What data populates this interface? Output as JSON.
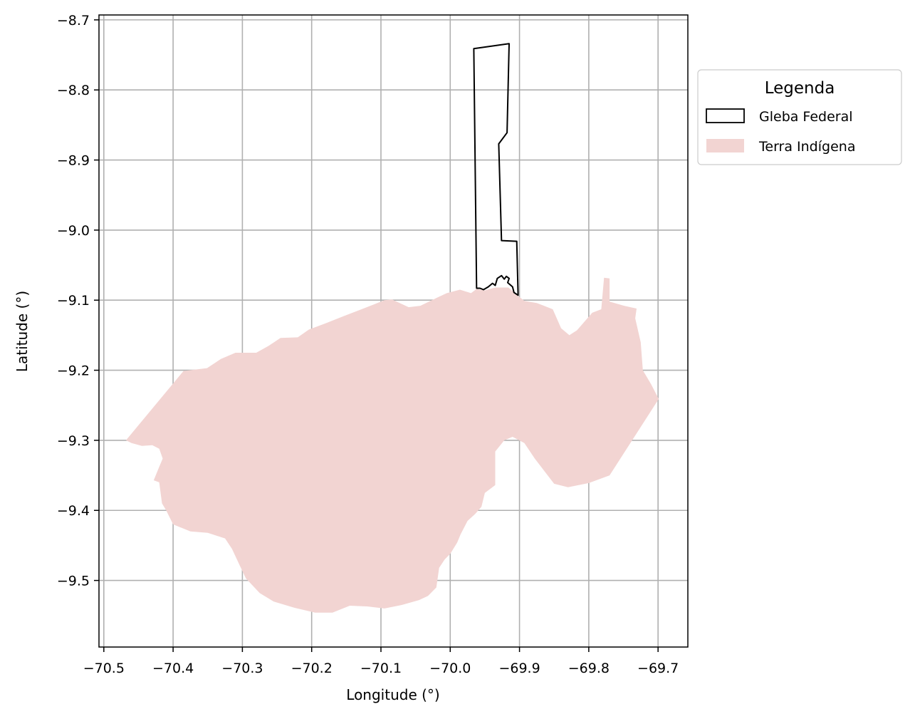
{
  "chart_data": {
    "type": "map",
    "xlabel": "Longitude (°)",
    "ylabel": "Latitude (°)",
    "xlim": [
      -70.507,
      -69.657
    ],
    "ylim": [
      -9.595,
      -8.693
    ],
    "grid": true,
    "xticks": [
      -70.5,
      -70.4,
      -70.3,
      -70.2,
      -70.1,
      -70.0,
      -69.9,
      -69.8,
      -69.7
    ],
    "xtick_labels": [
      "−70.5",
      "−70.4",
      "−70.3",
      "−70.2",
      "−70.1",
      "−70.0",
      "−69.9",
      "−69.8",
      "−69.7"
    ],
    "yticks": [
      -8.7,
      -8.8,
      -8.9,
      -9.0,
      -9.1,
      -9.2,
      -9.3,
      -9.4,
      -9.5
    ],
    "ytick_labels": [
      "−8.7",
      "−8.8",
      "−8.9",
      "−9.0",
      "−9.1",
      "−9.2",
      "−9.3",
      "−9.4",
      "−9.5"
    ],
    "legend": {
      "title": "Legenda",
      "position": "outside-right-top",
      "entries": [
        {
          "label": "Gleba Federal",
          "style": "outline",
          "color": "#000000"
        },
        {
          "label": "Terra Indígena",
          "style": "fill",
          "color": "#f2d4d2"
        }
      ]
    },
    "layers": [
      {
        "name": "Gleba Federal",
        "style": "outline",
        "stroke": "#000000",
        "polygon": [
          [
            -69.966,
            -8.741
          ],
          [
            -69.915,
            -8.734
          ],
          [
            -69.918,
            -8.861
          ],
          [
            -69.93,
            -8.877
          ],
          [
            -69.926,
            -9.015
          ],
          [
            -69.904,
            -9.016
          ],
          [
            -69.902,
            -9.093
          ],
          [
            -69.908,
            -9.089
          ],
          [
            -69.91,
            -9.081
          ],
          [
            -69.917,
            -9.075
          ],
          [
            -69.915,
            -9.069
          ],
          [
            -69.919,
            -9.066
          ],
          [
            -69.922,
            -9.07
          ],
          [
            -69.926,
            -9.065
          ],
          [
            -69.932,
            -9.069
          ],
          [
            -69.935,
            -9.079
          ],
          [
            -69.939,
            -9.076
          ],
          [
            -69.945,
            -9.081
          ],
          [
            -69.952,
            -9.085
          ],
          [
            -69.957,
            -9.083
          ],
          [
            -69.962,
            -9.083
          ]
        ]
      },
      {
        "name": "Terra Indígena",
        "style": "fill",
        "fill": "#f2d4d2",
        "polygon": [
          [
            -70.468,
            -9.3
          ],
          [
            -70.385,
            -9.201
          ],
          [
            -70.351,
            -9.197
          ],
          [
            -70.331,
            -9.184
          ],
          [
            -70.31,
            -9.175
          ],
          [
            -70.28,
            -9.175
          ],
          [
            -70.262,
            -9.165
          ],
          [
            -70.245,
            -9.154
          ],
          [
            -70.22,
            -9.153
          ],
          [
            -70.204,
            -9.142
          ],
          [
            -70.18,
            -9.133
          ],
          [
            -70.154,
            -9.123
          ],
          [
            -70.11,
            -9.106
          ],
          [
            -70.095,
            -9.1
          ],
          [
            -70.084,
            -9.099
          ],
          [
            -70.06,
            -9.11
          ],
          [
            -70.043,
            -9.108
          ],
          [
            -70.018,
            -9.096
          ],
          [
            -70.005,
            -9.09
          ],
          [
            -69.986,
            -9.085
          ],
          [
            -69.97,
            -9.09
          ],
          [
            -69.962,
            -9.084
          ],
          [
            -69.95,
            -9.086
          ],
          [
            -69.935,
            -9.082
          ],
          [
            -69.916,
            -9.082
          ],
          [
            -69.902,
            -9.094
          ],
          [
            -69.893,
            -9.101
          ],
          [
            -69.875,
            -9.104
          ],
          [
            -69.852,
            -9.113
          ],
          [
            -69.84,
            -9.14
          ],
          [
            -69.828,
            -9.15
          ],
          [
            -69.817,
            -9.143
          ],
          [
            -69.795,
            -9.118
          ],
          [
            -69.782,
            -9.113
          ],
          [
            -69.778,
            -9.068
          ],
          [
            -69.77,
            -9.069
          ],
          [
            -69.77,
            -9.102
          ],
          [
            -69.749,
            -9.108
          ],
          [
            -69.731,
            -9.112
          ],
          [
            -69.733,
            -9.126
          ],
          [
            -69.725,
            -9.16
          ],
          [
            -69.722,
            -9.2
          ],
          [
            -69.71,
            -9.22
          ],
          [
            -69.699,
            -9.241
          ],
          [
            -69.77,
            -9.35
          ],
          [
            -69.8,
            -9.361
          ],
          [
            -69.83,
            -9.367
          ],
          [
            -69.85,
            -9.362
          ],
          [
            -69.878,
            -9.326
          ],
          [
            -69.893,
            -9.304
          ],
          [
            -69.91,
            -9.295
          ],
          [
            -69.922,
            -9.3
          ],
          [
            -69.935,
            -9.316
          ],
          [
            -69.935,
            -9.364
          ],
          [
            -69.95,
            -9.375
          ],
          [
            -69.955,
            -9.395
          ],
          [
            -69.964,
            -9.405
          ],
          [
            -69.975,
            -9.415
          ],
          [
            -69.985,
            -9.434
          ],
          [
            -69.99,
            -9.446
          ],
          [
            -70.0,
            -9.462
          ],
          [
            -70.008,
            -9.47
          ],
          [
            -70.016,
            -9.482
          ],
          [
            -70.02,
            -9.51
          ],
          [
            -70.032,
            -9.522
          ],
          [
            -70.045,
            -9.528
          ],
          [
            -70.07,
            -9.535
          ],
          [
            -70.095,
            -9.54
          ],
          [
            -70.12,
            -9.537
          ],
          [
            -70.145,
            -9.536
          ],
          [
            -70.17,
            -9.546
          ],
          [
            -70.195,
            -9.546
          ],
          [
            -70.225,
            -9.539
          ],
          [
            -70.255,
            -9.53
          ],
          [
            -70.275,
            -9.518
          ],
          [
            -70.295,
            -9.497
          ],
          [
            -70.305,
            -9.476
          ],
          [
            -70.315,
            -9.455
          ],
          [
            -70.325,
            -9.44
          ],
          [
            -70.35,
            -9.432
          ],
          [
            -70.375,
            -9.43
          ],
          [
            -70.4,
            -9.42
          ],
          [
            -70.41,
            -9.4
          ],
          [
            -70.416,
            -9.39
          ],
          [
            -70.42,
            -9.36
          ],
          [
            -70.428,
            -9.357
          ],
          [
            -70.421,
            -9.34
          ],
          [
            -70.415,
            -9.326
          ],
          [
            -70.42,
            -9.312
          ],
          [
            -70.43,
            -9.307
          ],
          [
            -70.445,
            -9.308
          ],
          [
            -70.46,
            -9.304
          ]
        ]
      }
    ]
  }
}
